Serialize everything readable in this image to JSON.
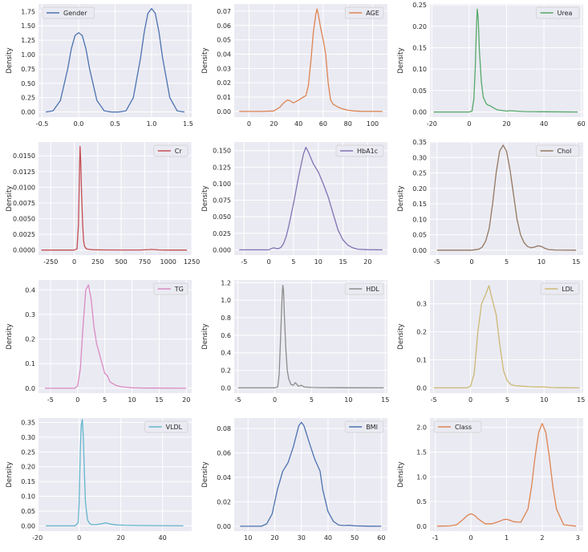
{
  "chart_data": [
    {
      "type": "line",
      "legend": "Gender",
      "ylabel": "Density",
      "legend_loc": "upper left",
      "color": "#4c72b0",
      "xlim": [
        -0.55,
        1.55
      ],
      "ylim": [
        -0.09,
        1.88
      ],
      "xticks": [
        -0.5,
        0.0,
        0.5,
        1.0,
        1.5
      ],
      "xtick_labels": [
        "-0.5",
        "0.0",
        "0.5",
        "1.0",
        "1.5"
      ],
      "yticks": [
        0,
        0.25,
        0.5,
        0.75,
        1.0,
        1.25,
        1.5,
        1.75
      ],
      "ytick_labels": [
        "0.00",
        "0.25",
        "0.50",
        "0.75",
        "1.00",
        "1.25",
        "1.50",
        "1.75"
      ],
      "series": {
        "x": [
          -0.45,
          -0.35,
          -0.25,
          -0.15,
          -0.1,
          -0.05,
          0.0,
          0.05,
          0.1,
          0.15,
          0.25,
          0.35,
          0.45,
          0.55,
          0.65,
          0.75,
          0.85,
          0.9,
          0.95,
          1.0,
          1.05,
          1.1,
          1.15,
          1.25,
          1.35,
          1.45
        ],
        "y": [
          0.0,
          0.02,
          0.2,
          0.75,
          1.1,
          1.33,
          1.38,
          1.33,
          1.1,
          0.75,
          0.2,
          0.02,
          0.0,
          0.0,
          0.02,
          0.25,
          0.95,
          1.4,
          1.72,
          1.8,
          1.72,
          1.4,
          0.95,
          0.25,
          0.02,
          0.0
        ]
      }
    },
    {
      "type": "line",
      "legend": "AGE",
      "ylabel": "Density",
      "legend_loc": "upper right",
      "color": "#dd8452",
      "xlim": [
        -12,
        112
      ],
      "ylim": [
        -0.004,
        0.075
      ],
      "xticks": [
        0,
        20,
        40,
        60,
        80,
        100
      ],
      "xtick_labels": [
        "0",
        "20",
        "40",
        "60",
        "80",
        "100"
      ],
      "yticks": [
        0,
        0.01,
        0.02,
        0.03,
        0.04,
        0.05,
        0.06,
        0.07
      ],
      "ytick_labels": [
        "0.00",
        "0.01",
        "0.02",
        "0.03",
        "0.04",
        "0.05",
        "0.06",
        "0.07"
      ],
      "series": {
        "x": [
          -8,
          10,
          20,
          25,
          28,
          31,
          33,
          36,
          38,
          42,
          46,
          48,
          50,
          52,
          54,
          55,
          56,
          58,
          60,
          62,
          64,
          66,
          68,
          70,
          72,
          75,
          80,
          85,
          90,
          108
        ],
        "y": [
          0,
          0,
          0.0003,
          0.003,
          0.006,
          0.008,
          0.0075,
          0.006,
          0.0068,
          0.009,
          0.011,
          0.018,
          0.035,
          0.055,
          0.068,
          0.0715,
          0.068,
          0.058,
          0.05,
          0.04,
          0.02,
          0.008,
          0.005,
          0.004,
          0.003,
          0.002,
          0.0008,
          0.0003,
          0.0001,
          0
        ]
      }
    },
    {
      "type": "line",
      "legend": "Urea",
      "ylabel": "Density",
      "legend_loc": "upper right",
      "color": "#55a868",
      "xlim": [
        -21,
        61
      ],
      "ylim": [
        -0.012,
        0.252
      ],
      "xticks": [
        -20,
        0,
        20,
        40,
        60
      ],
      "xtick_labels": [
        "-20",
        "0",
        "20",
        "40",
        "60"
      ],
      "yticks": [
        0,
        0.05,
        0.1,
        0.15,
        0.2,
        0.25
      ],
      "ytick_labels": [
        "0.00",
        "0.05",
        "0.10",
        "0.15",
        "0.20",
        "0.25"
      ],
      "series": {
        "x": [
          -19,
          0,
          1.5,
          2.5,
          3.2,
          3.8,
          4.3,
          4.8,
          5.5,
          6.5,
          7.5,
          9,
          10,
          11,
          13,
          15,
          17,
          20,
          22,
          25,
          30,
          40,
          58
        ],
        "y": [
          0,
          0,
          0.002,
          0.03,
          0.1,
          0.19,
          0.24,
          0.22,
          0.14,
          0.07,
          0.035,
          0.02,
          0.016,
          0.015,
          0.01,
          0.005,
          0.004,
          0.002,
          0.003,
          0.002,
          0.001,
          0.0005,
          0
        ]
      }
    },
    {
      "type": "line",
      "legend": "Cr",
      "ylabel": "Density",
      "legend_loc": "upper right",
      "color": "#c44e52",
      "xlim": [
        -380,
        1250
      ],
      "ylim": [
        -0.0008,
        0.0172
      ],
      "xticks": [
        -250,
        0,
        250,
        500,
        750,
        1000,
        1250
      ],
      "xtick_labels": [
        "-250",
        "0",
        "250",
        "500",
        "750",
        "1000",
        "1250"
      ],
      "yticks": [
        0,
        0.0025,
        0.005,
        0.0075,
        0.01,
        0.0125,
        0.015
      ],
      "ytick_labels": [
        "0.0000",
        "0.0025",
        "0.0050",
        "0.0075",
        "0.0100",
        "0.0125",
        "0.0150"
      ],
      "series": {
        "x": [
          -350,
          0,
          30,
          45,
          55,
          62,
          70,
          78,
          90,
          100,
          110,
          130,
          160,
          200,
          300,
          500,
          700,
          800,
          820,
          900,
          1000,
          1200
        ],
        "y": [
          0,
          0,
          0.0002,
          0.004,
          0.012,
          0.0165,
          0.014,
          0.009,
          0.004,
          0.0015,
          0.0006,
          0.0002,
          0.0001,
          5e-05,
          3e-05,
          2e-05,
          2e-05,
          8e-05,
          0.0001,
          3e-05,
          1e-05,
          0
        ]
      }
    },
    {
      "type": "line",
      "legend": "HbA1c",
      "ylabel": "Density",
      "legend_loc": "upper right",
      "color": "#8172b3",
      "xlim": [
        -7,
        24
      ],
      "ylim": [
        -0.008,
        0.163
      ],
      "xticks": [
        -5,
        0,
        5,
        10,
        15,
        20
      ],
      "xtick_labels": [
        "-5",
        "0",
        "5",
        "10",
        "15",
        "20"
      ],
      "yticks": [
        0,
        0.025,
        0.05,
        0.075,
        0.1,
        0.125,
        0.15
      ],
      "ytick_labels": [
        "0.000",
        "0.025",
        "0.050",
        "0.075",
        "0.100",
        "0.125",
        "0.150"
      ],
      "series": {
        "x": [
          -6,
          0,
          0.5,
          1,
          1.5,
          2,
          2.5,
          3,
          3.5,
          4,
          5,
          6,
          7,
          7.5,
          8,
          9,
          10,
          11,
          12,
          13,
          14,
          15,
          16,
          17,
          18,
          20,
          23
        ],
        "y": [
          0,
          0,
          0.002,
          0.003,
          0.002,
          0.002,
          0.004,
          0.01,
          0.02,
          0.035,
          0.07,
          0.11,
          0.145,
          0.155,
          0.148,
          0.13,
          0.118,
          0.1,
          0.08,
          0.055,
          0.03,
          0.015,
          0.007,
          0.003,
          0.001,
          0.0002,
          0
        ]
      }
    },
    {
      "type": "line",
      "legend": "Chol",
      "ylabel": "Density",
      "legend_loc": "upper right",
      "color": "#937860",
      "xlim": [
        -6,
        16
      ],
      "ylim": [
        -0.016,
        0.35
      ],
      "xticks": [
        -5,
        0,
        5,
        10,
        15
      ],
      "xtick_labels": [
        "-5",
        "0",
        "5",
        "10",
        "15"
      ],
      "yticks": [
        0,
        0.05,
        0.1,
        0.15,
        0.2,
        0.25,
        0.3,
        0.35
      ],
      "ytick_labels": [
        "0.00",
        "0.05",
        "0.10",
        "0.15",
        "0.20",
        "0.25",
        "0.30",
        "0.35"
      ],
      "series": {
        "x": [
          -5,
          0,
          1,
          1.5,
          2,
          2.5,
          3,
          3.5,
          4,
          4.5,
          5,
          5.5,
          6,
          6.5,
          7,
          7.5,
          8,
          8.5,
          9,
          9.5,
          10,
          10.5,
          11,
          12,
          15
        ],
        "y": [
          0,
          0,
          0.003,
          0.01,
          0.03,
          0.07,
          0.15,
          0.25,
          0.32,
          0.34,
          0.32,
          0.26,
          0.18,
          0.1,
          0.05,
          0.025,
          0.012,
          0.008,
          0.01,
          0.014,
          0.012,
          0.006,
          0.002,
          0.0005,
          0
        ]
      }
    },
    {
      "type": "line",
      "legend": "TG",
      "ylabel": "Density",
      "legend_loc": "upper right",
      "color": "#da8bc3",
      "xlim": [
        -7.2,
        21
      ],
      "ylim": [
        -0.02,
        0.44
      ],
      "xticks": [
        -5,
        0,
        5,
        10,
        15,
        20
      ],
      "xtick_labels": [
        "-5",
        "0",
        "5",
        "10",
        "15",
        "20"
      ],
      "yticks": [
        0,
        0.1,
        0.2,
        0.3,
        0.4
      ],
      "ytick_labels": [
        "0.0",
        "0.1",
        "0.2",
        "0.3",
        "0.4"
      ],
      "series": {
        "x": [
          -6,
          -0.5,
          0,
          0.5,
          1,
          1.5,
          2,
          2.5,
          3,
          3.5,
          4,
          4.5,
          5,
          5.5,
          6,
          7,
          8,
          9,
          10,
          12,
          14,
          20
        ],
        "y": [
          0,
          0,
          0.01,
          0.08,
          0.25,
          0.4,
          0.42,
          0.36,
          0.25,
          0.18,
          0.14,
          0.1,
          0.06,
          0.05,
          0.025,
          0.012,
          0.006,
          0.004,
          0.002,
          0.001,
          0.0005,
          0
        ]
      }
    },
    {
      "type": "line",
      "legend": "HDL",
      "ylabel": "Density",
      "legend_loc": "upper right",
      "color": "#8c8c8c",
      "xlim": [
        -5.5,
        15.3
      ],
      "ylim": [
        -0.06,
        1.23
      ],
      "xticks": [
        -5,
        0,
        5,
        10,
        15
      ],
      "xtick_labels": [
        "-5",
        "0",
        "5",
        "10",
        "15"
      ],
      "yticks": [
        0,
        0.2,
        0.4,
        0.6,
        0.8,
        1.0,
        1.2
      ],
      "ytick_labels": [
        "0.0",
        "0.2",
        "0.4",
        "0.6",
        "0.8",
        "1.0",
        "1.2"
      ],
      "series": {
        "x": [
          -5,
          0,
          0.4,
          0.6,
          0.8,
          1,
          1.1,
          1.2,
          1.3,
          1.5,
          1.7,
          1.9,
          2.2,
          2.5,
          2.8,
          3.2,
          3.6,
          4,
          5,
          6,
          8,
          10,
          14.8
        ],
        "y": [
          0,
          0,
          0.01,
          0.15,
          0.6,
          1.05,
          1.17,
          1.1,
          0.85,
          0.45,
          0.2,
          0.1,
          0.04,
          0.03,
          0.06,
          0.02,
          0.03,
          0.01,
          0.005,
          0.003,
          0.002,
          0.001,
          0
        ]
      }
    },
    {
      "type": "line",
      "legend": "LDL",
      "ylabel": "Density",
      "legend_loc": "upper right",
      "color": "#ccb974",
      "xlim": [
        -5.5,
        15.3
      ],
      "ylim": [
        -0.019,
        0.385
      ],
      "xticks": [
        -5,
        0,
        5,
        10,
        15
      ],
      "xtick_labels": [
        "-5",
        "0",
        "5",
        "10",
        "15"
      ],
      "yticks": [
        0,
        0.1,
        0.2,
        0.3
      ],
      "ytick_labels": [
        "0.0",
        "0.1",
        "0.2",
        "0.3"
      ],
      "series": {
        "x": [
          -5,
          -0.5,
          0,
          0.5,
          1,
          1.5,
          2,
          2.5,
          3,
          3.5,
          4,
          4.5,
          5,
          5.5,
          6,
          7,
          8,
          9,
          10,
          11,
          12,
          14.8
        ],
        "y": [
          0,
          0,
          0.005,
          0.05,
          0.2,
          0.3,
          0.33,
          0.365,
          0.31,
          0.26,
          0.15,
          0.06,
          0.025,
          0.012,
          0.008,
          0.006,
          0.004,
          0.003,
          0.003,
          0.001,
          0.0005,
          0
        ]
      }
    },
    {
      "type": "line",
      "legend": "VLDL",
      "ylabel": "Density",
      "legend_loc": "upper right",
      "color": "#64b5cd",
      "xlim": [
        -19.5,
        54
      ],
      "ylim": [
        -0.018,
        0.365
      ],
      "xticks": [
        -20,
        0,
        20,
        40
      ],
      "xtick_labels": [
        "-20",
        "0",
        "20",
        "40"
      ],
      "yticks": [
        0,
        0.05,
        0.1,
        0.15,
        0.2,
        0.25,
        0.3,
        0.35
      ],
      "ytick_labels": [
        "0.00",
        "0.05",
        "0.10",
        "0.15",
        "0.20",
        "0.25",
        "0.30",
        "0.35"
      ],
      "series": {
        "x": [
          -16,
          -2,
          -0.5,
          0,
          0.5,
          1,
          1.5,
          2,
          2.5,
          3,
          4,
          5,
          6,
          8,
          10,
          12,
          13,
          15,
          18,
          22,
          30,
          50
        ],
        "y": [
          0,
          0,
          0.01,
          0.08,
          0.25,
          0.34,
          0.36,
          0.3,
          0.18,
          0.08,
          0.02,
          0.008,
          0.004,
          0.004,
          0.006,
          0.009,
          0.01,
          0.006,
          0.003,
          0.002,
          0.001,
          0
        ]
      }
    },
    {
      "type": "line",
      "legend": "BMI",
      "ylabel": "Density",
      "legend_loc": "upper right",
      "color": "#4c72b0",
      "xlim": [
        4.8,
        62.3
      ],
      "ylim": [
        -0.004,
        0.0885
      ],
      "xticks": [
        10,
        20,
        30,
        40,
        50,
        60
      ],
      "xtick_labels": [
        "10",
        "20",
        "30",
        "40",
        "50",
        "60"
      ],
      "yticks": [
        0,
        0.02,
        0.04,
        0.06,
        0.08
      ],
      "ytick_labels": [
        "0.00",
        "0.02",
        "0.04",
        "0.06",
        "0.08"
      ],
      "series": {
        "x": [
          7,
          15,
          17,
          19,
          21,
          23,
          25,
          27,
          29,
          30,
          31,
          33,
          35,
          37,
          38,
          40,
          42,
          44,
          46,
          48,
          50,
          55,
          60
        ],
        "y": [
          0,
          0,
          0.002,
          0.01,
          0.03,
          0.045,
          0.052,
          0.065,
          0.082,
          0.085,
          0.082,
          0.068,
          0.055,
          0.045,
          0.03,
          0.012,
          0.004,
          0.001,
          0.0006,
          0.0008,
          0.0003,
          0.0001,
          0
        ]
      }
    },
    {
      "type": "line",
      "legend": "Class",
      "ylabel": "Density",
      "legend_loc": "upper left",
      "color": "#dd8452",
      "xlim": [
        -1.15,
        3.15
      ],
      "ylim": [
        -0.1,
        2.19
      ],
      "xticks": [
        -1,
        0,
        1,
        2,
        3
      ],
      "xtick_labels": [
        "-1",
        "0",
        "1",
        "2",
        "3"
      ],
      "yticks": [
        0,
        0.5,
        1.0,
        1.5,
        2.0
      ],
      "ytick_labels": [
        "0.0",
        "0.5",
        "1.0",
        "1.5",
        "2.0"
      ],
      "series": {
        "x": [
          -0.95,
          -0.6,
          -0.4,
          -0.2,
          -0.1,
          0,
          0.1,
          0.2,
          0.4,
          0.6,
          0.8,
          0.9,
          1,
          1.1,
          1.2,
          1.4,
          1.6,
          1.7,
          1.8,
          1.9,
          2,
          2.1,
          2.2,
          2.3,
          2.4,
          2.6,
          2.95
        ],
        "y": [
          0,
          0.005,
          0.03,
          0.15,
          0.22,
          0.25,
          0.22,
          0.15,
          0.05,
          0.05,
          0.1,
          0.13,
          0.14,
          0.12,
          0.09,
          0.08,
          0.35,
          0.8,
          1.4,
          1.9,
          2.08,
          1.9,
          1.4,
          0.8,
          0.35,
          0.03,
          0
        ]
      }
    }
  ]
}
